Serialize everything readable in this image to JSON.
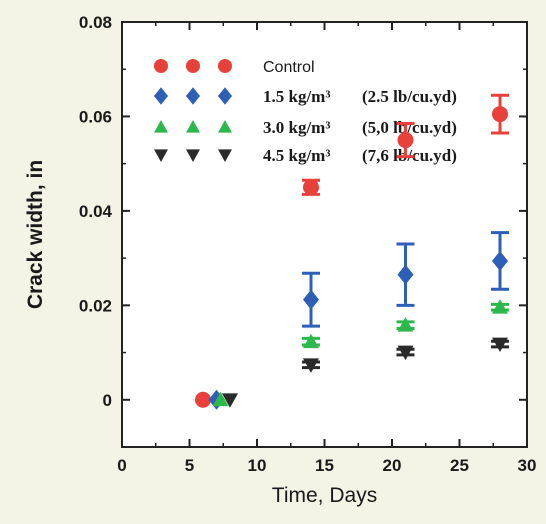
{
  "chart_data": {
    "type": "scatter",
    "title": "",
    "xlabel": "Time, Days",
    "ylabel": "Crack width, in",
    "xlim": [
      0,
      30
    ],
    "ylim": [
      -0.01,
      0.08
    ],
    "x_ticks": [
      0,
      5,
      10,
      15,
      20,
      25,
      30
    ],
    "y_ticks": [
      0,
      0.02,
      0.04,
      0.06,
      0.08
    ],
    "x_tick_labels": [
      "0",
      "5",
      "10",
      "15",
      "20",
      "25",
      "30"
    ],
    "y_tick_labels": [
      "0",
      "0.02",
      "0.04",
      "0.06",
      "0.08"
    ],
    "grid": false,
    "legend_position": "top-left",
    "series": [
      {
        "name": "Control",
        "marker": "circle",
        "color": "#e8403a",
        "x": [
          6,
          14,
          21,
          28
        ],
        "y": [
          0.0,
          0.045,
          0.055,
          0.0605
        ],
        "error": [
          0.0,
          0.0015,
          0.0035,
          0.004
        ]
      },
      {
        "name": "1.5 kg/m³ (2.5 lb/cu.yd)",
        "marker": "diamond",
        "color": "#2e5fb8",
        "x": [
          7,
          14,
          21,
          28
        ],
        "y": [
          0.0,
          0.0212,
          0.0265,
          0.0294
        ],
        "error": [
          0.0,
          0.0056,
          0.0065,
          0.006
        ]
      },
      {
        "name": "3.0 kg/m³ (5,0 lb/cu.yd)",
        "marker": "triangle-up",
        "color": "#2db84b",
        "x": [
          7.3,
          14,
          21,
          28
        ],
        "y": [
          0.0,
          0.0123,
          0.0158,
          0.0196
        ],
        "error": [
          0.0,
          0.0007,
          0.0007,
          0.0006
        ]
      },
      {
        "name": "4.5 kg/m³ (7,6 lb/cu.yd)",
        "marker": "triangle-down",
        "color": "#2a2a2a",
        "x": [
          8,
          14,
          21,
          28
        ],
        "y": [
          0.0,
          0.0074,
          0.0101,
          0.0118
        ],
        "error": [
          0.0,
          0.0006,
          0.0006,
          0.0006
        ]
      }
    ]
  },
  "legend": {
    "items": [
      {
        "name_a": "Control",
        "name_b": "",
        "font": "sans"
      },
      {
        "name_a": "1.5 kg/m³",
        "name_b": "(2.5 lb/cu.yd)",
        "font": "serif"
      },
      {
        "name_a": "3.0 kg/m³",
        "name_b": "(5,0 lb/cu.yd)",
        "font": "serif"
      },
      {
        "name_a": "4.5 kg/m³",
        "name_b": "(7,6 lb/cu.yd)",
        "font": "serif"
      }
    ]
  }
}
